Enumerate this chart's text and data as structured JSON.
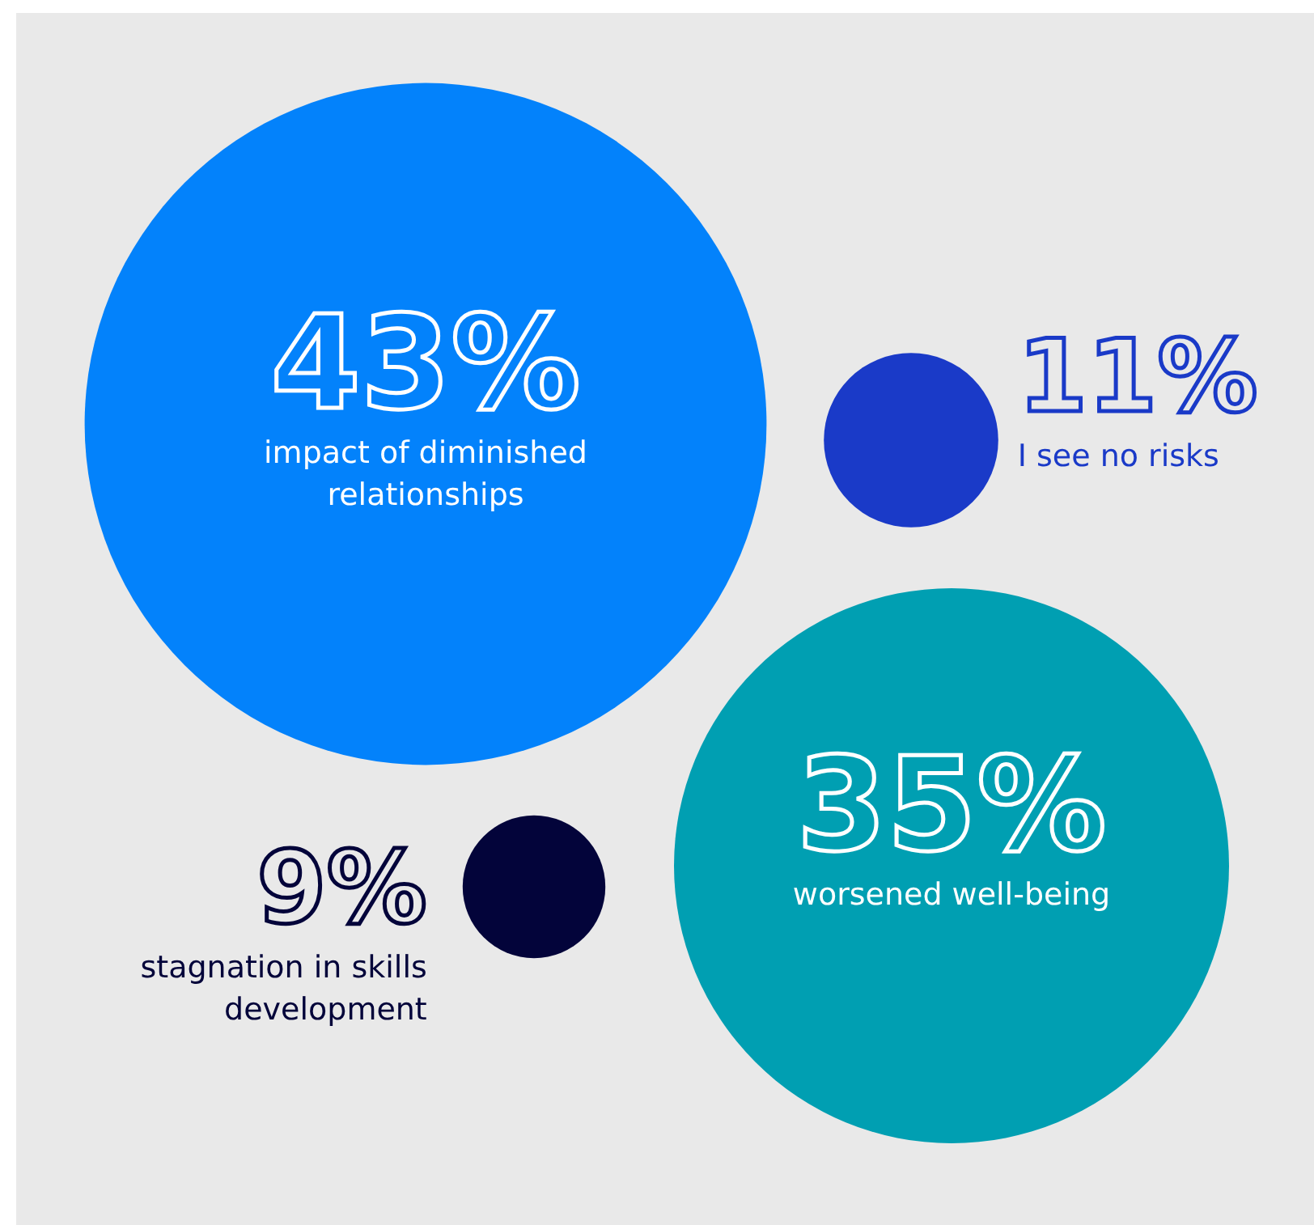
{
  "chart_data": {
    "type": "other",
    "categories": [
      "impact of diminished relationships",
      "I see no risks",
      "worsened well-being",
      "stagnation in skills development"
    ],
    "values": [
      43,
      11,
      35,
      9
    ],
    "value_labels": [
      "43%",
      "11%",
      "35%",
      "9%"
    ],
    "colors": [
      "#0382fb",
      "#1a3ac8",
      "#009fb2",
      "#03043a"
    ]
  }
}
